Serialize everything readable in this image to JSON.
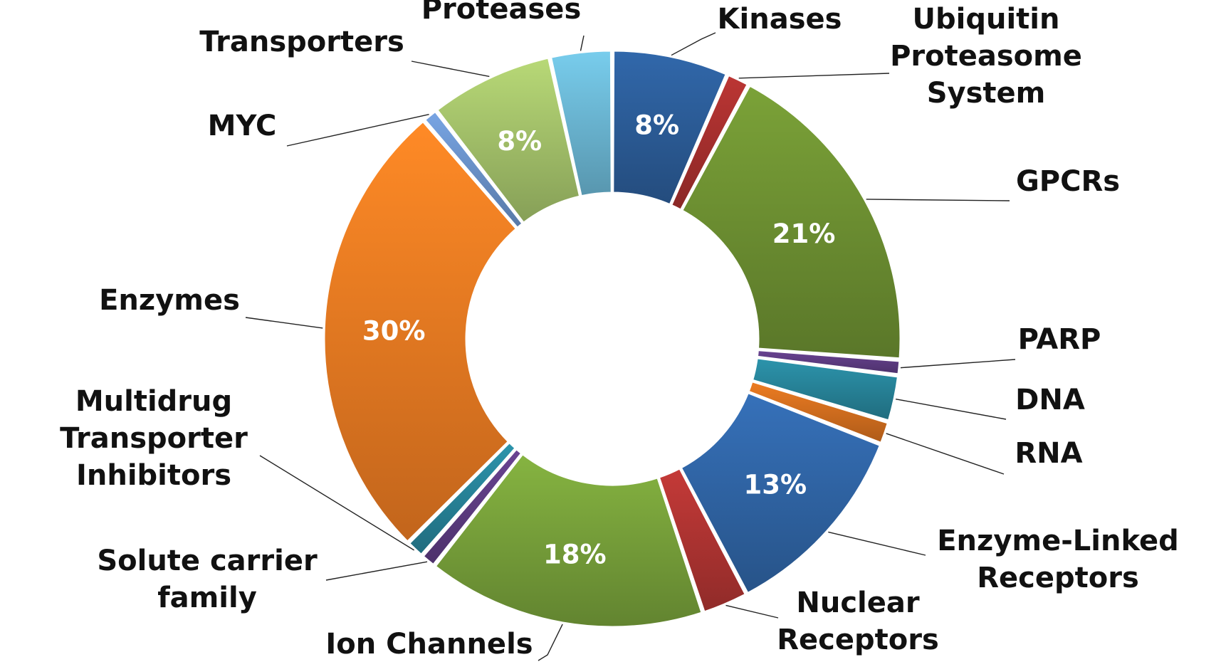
{
  "chart_data": {
    "type": "pie",
    "variant": "donut",
    "title": "",
    "slices": [
      {
        "name": "Kinases",
        "value": 7.5,
        "label_text": "8%",
        "color": "#2C5D99"
      },
      {
        "name": "Ubiquitin Proteasome System",
        "value": 1.5,
        "label_text": "",
        "color": "#A8302E"
      },
      {
        "name": "GPCRs",
        "value": 21,
        "label_text": "21%",
        "color": "#6E9132"
      },
      {
        "name": "PARP",
        "value": 1,
        "label_text": "",
        "color": "#5E3C82"
      },
      {
        "name": "DNA",
        "value": 3,
        "label_text": "",
        "color": "#27849A"
      },
      {
        "name": "RNA",
        "value": 1.5,
        "label_text": "",
        "color": "#D46F1E"
      },
      {
        "name": "Enzyme-Linked Receptors",
        "value": 13,
        "label_text": "13%",
        "color": "#3065A6"
      },
      {
        "name": "Nuclear Receptors",
        "value": 3,
        "label_text": "",
        "color": "#B03432"
      },
      {
        "name": "Ion Channels",
        "value": 18,
        "label_text": "18%",
        "color": "#78A13A"
      },
      {
        "name": "Solute carrier family",
        "value": 1,
        "label_text": "",
        "color": "#5E3C82"
      },
      {
        "name": "Multidrug Transporter Inhibitors",
        "value": 1.2,
        "label_text": "",
        "color": "#27849A"
      },
      {
        "name": "Enzymes",
        "value": 30,
        "label_text": "30%",
        "color": "#ED7B22"
      },
      {
        "name": "MYC",
        "value": 1,
        "label_text": "",
        "color": "#6B93CC"
      },
      {
        "name": "Transporters",
        "value": 8,
        "label_text": "8%",
        "color": "#A4C26A"
      },
      {
        "name": "Proteases",
        "value": 4,
        "label_text": "",
        "color": "#6BB7D4"
      }
    ],
    "category_labels": [
      {
        "lines": [
          "Kinases"
        ]
      },
      {
        "lines": [
          "Ubiquitin",
          "Proteasome",
          "System"
        ]
      },
      {
        "lines": [
          "GPCRs"
        ]
      },
      {
        "lines": [
          "PARP"
        ]
      },
      {
        "lines": [
          "DNA"
        ]
      },
      {
        "lines": [
          "RNA"
        ]
      },
      {
        "lines": [
          "Enzyme-Linked",
          "Receptors"
        ]
      },
      {
        "lines": [
          "Nuclear",
          "Receptors"
        ]
      },
      {
        "lines": [
          "Ion Channels"
        ]
      },
      {
        "lines": [
          "Solute carrier",
          "family"
        ]
      },
      {
        "lines": [
          "Multidrug",
          "Transporter",
          "Inhibitors"
        ]
      },
      {
        "lines": [
          "Enzymes"
        ]
      },
      {
        "lines": [
          "MYC"
        ]
      },
      {
        "lines": [
          "Transporters"
        ]
      },
      {
        "lines": [
          "Proteases"
        ]
      }
    ]
  }
}
